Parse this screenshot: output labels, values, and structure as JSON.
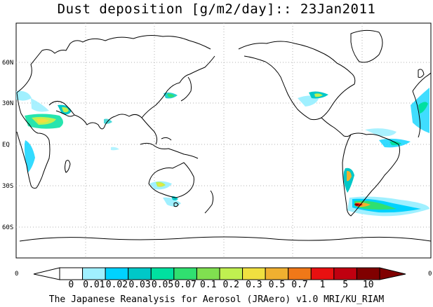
{
  "title": "Dust deposition [g/m2/day]:: 23Jan2011",
  "credit": "The Japanese Reanalysis for Aerosol (JRAero) v1.0 MRI/KU_RIAM",
  "lat_labels": [
    "60N",
    "30N",
    "EQ",
    "30S",
    "60S"
  ],
  "colorbar": {
    "edge_left": "0",
    "edge_right": "0",
    "levels": [
      "0",
      "0.01",
      "0.02",
      "0.03",
      "0.05",
      "0.07",
      "0.1",
      "0.2",
      "0.3",
      "0.5",
      "0.7",
      "1",
      "5",
      "10"
    ],
    "colors": [
      "#ffffff",
      "#a0f0ff",
      "#00d2ff",
      "#00c8c8",
      "#00e0a0",
      "#30e070",
      "#80e050",
      "#c0f050",
      "#f0e040",
      "#f0b030",
      "#f07818",
      "#e81010",
      "#c00010",
      "#800000"
    ],
    "under_color": "#ffffff",
    "over_color": "#800000"
  },
  "icons": {
    "coastline": "coastline-icon"
  }
}
